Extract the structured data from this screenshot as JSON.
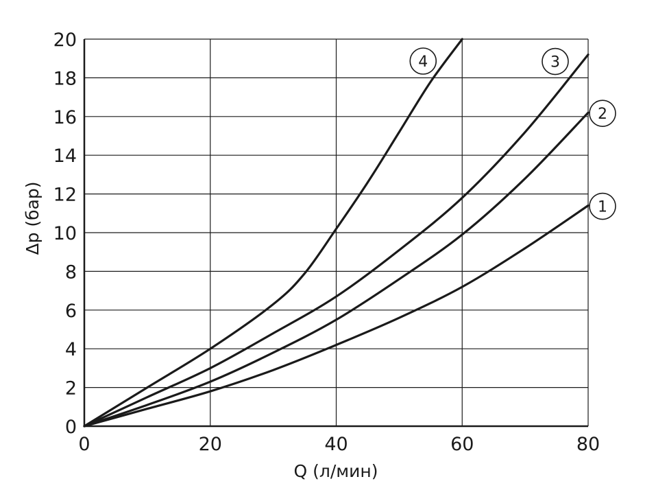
{
  "chart_data": {
    "type": "line",
    "xlabel": "Q (л/мин)",
    "ylabel": "Δp (бар)",
    "xlim": [
      0,
      80
    ],
    "ylim": [
      0,
      20
    ],
    "x_ticks": [
      "0",
      "20",
      "40",
      "60",
      "80"
    ],
    "y_ticks": [
      "0",
      "2",
      "4",
      "6",
      "8",
      "10",
      "12",
      "14",
      "16",
      "18",
      "20"
    ],
    "grid": true,
    "colors": {
      "line": "#1a1a1a",
      "grid": "#1a1a1a",
      "background": "#ffffff"
    },
    "series": [
      {
        "name": "1",
        "x": [
          0,
          10,
          20,
          30,
          40,
          50,
          60,
          70,
          80
        ],
        "y": [
          0,
          0.9,
          1.8,
          2.9,
          4.2,
          5.6,
          7.2,
          9.2,
          11.4
        ]
      },
      {
        "name": "2",
        "x": [
          0,
          10,
          20,
          30,
          40,
          50,
          60,
          70,
          80
        ],
        "y": [
          0,
          1.1,
          2.3,
          3.8,
          5.5,
          7.6,
          9.9,
          12.8,
          16.2
        ]
      },
      {
        "name": "3",
        "x": [
          0,
          10,
          20,
          30,
          40,
          50,
          60,
          70,
          80
        ],
        "y": [
          0,
          1.5,
          3.0,
          4.8,
          6.7,
          9.1,
          11.8,
          15.2,
          19.2
        ]
      },
      {
        "name": "4",
        "x": [
          0,
          10,
          20,
          30,
          35,
          40,
          45,
          50,
          55,
          60
        ],
        "y": [
          0,
          2.0,
          4.0,
          6.3,
          7.9,
          10.2,
          12.6,
          15.2,
          17.8,
          20.0
        ]
      }
    ]
  }
}
